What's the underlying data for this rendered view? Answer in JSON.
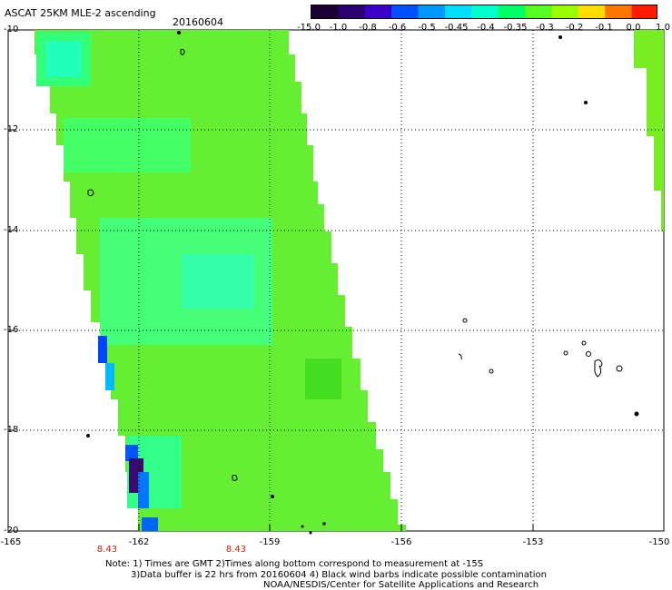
{
  "title": "ASCAT 25KM MLE-2 ascending",
  "date": "20160604",
  "colorbar": {
    "labels": [
      "-15.0",
      "-1.0",
      "-0.8",
      "-0.6",
      "-0.5",
      "-0.45",
      "-0.4",
      "-0.35",
      "-0.3",
      "-0.2",
      "-0.1",
      "0.0",
      "1.0"
    ],
    "colors": [
      "#1a0033",
      "#2b006e",
      "#3a00c8",
      "#0050ff",
      "#0099ff",
      "#00ddff",
      "#00ffcc",
      "#00ff66",
      "#55ff22",
      "#99ff00",
      "#ffdd00",
      "#ff7700",
      "#ff1a00"
    ]
  },
  "latitude_labels": [
    "-10",
    "-12",
    "-14",
    "-16",
    "-18",
    "-20"
  ],
  "longitude_labels": [
    "-165",
    "-162",
    "-159",
    "-156",
    "-153",
    "-150"
  ],
  "time_labels": [
    "8.43",
    "8.43"
  ],
  "notes": [
    "Note: 1) Times are GMT 2)Times along bottom correspond to measurement at -15S",
    "3)Data buffer is 22 hrs from 20160604 4) Black wind barbs indicate possible contamination",
    "NOAA/NESDIS/Center for Satellite Applications and Research"
  ],
  "swath_colors": {
    "main": "#66ee33",
    "light": "#33ff66",
    "cyan": "#22ffbb",
    "blue": "#0055ff",
    "dark": "#3a0a6e",
    "right_strip": "#77ee22"
  }
}
